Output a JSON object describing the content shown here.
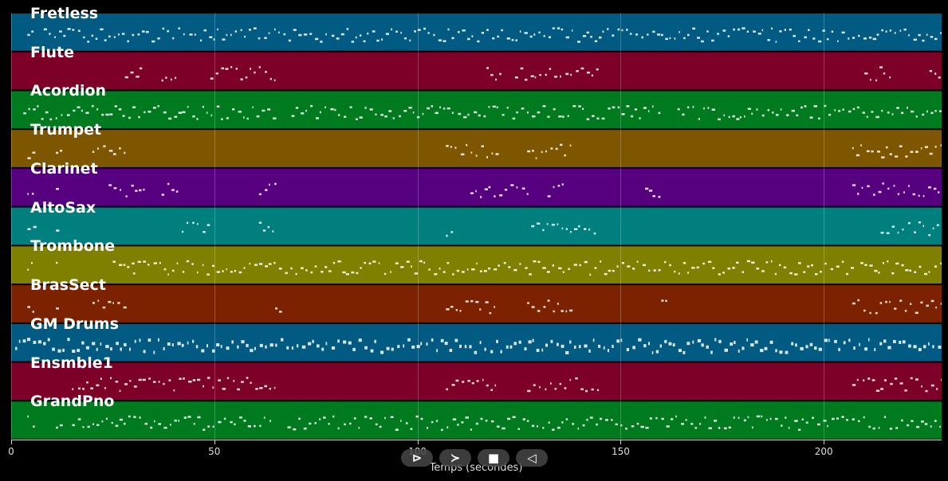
{
  "chart_data": {
    "type": "piano-roll",
    "xlabel": "Temps (secondes)",
    "xlim": [
      0,
      229
    ],
    "xticks": [
      0,
      50,
      100,
      150,
      200
    ],
    "tracks": [
      {
        "name": "Fretless",
        "color": "#005a82"
      },
      {
        "name": "Flute",
        "color": "#7c0028"
      },
      {
        "name": "Acordion",
        "color": "#007a1e"
      },
      {
        "name": "Trumpet",
        "color": "#7f5600"
      },
      {
        "name": "Clarinet",
        "color": "#560080"
      },
      {
        "name": "AltoSax",
        "color": "#007f7f"
      },
      {
        "name": "Trombone",
        "color": "#7f7f00"
      },
      {
        "name": "BrasSect",
        "color": "#7c2200"
      },
      {
        "name": "GM Drums",
        "color": "#005a82"
      },
      {
        "name": "Ensmble1",
        "color": "#7c0028"
      },
      {
        "name": "GrandPno",
        "color": "#007a1e"
      }
    ]
  },
  "controls": {
    "play": "⊳",
    "next": "≻",
    "stop": "■",
    "back": "◁"
  }
}
